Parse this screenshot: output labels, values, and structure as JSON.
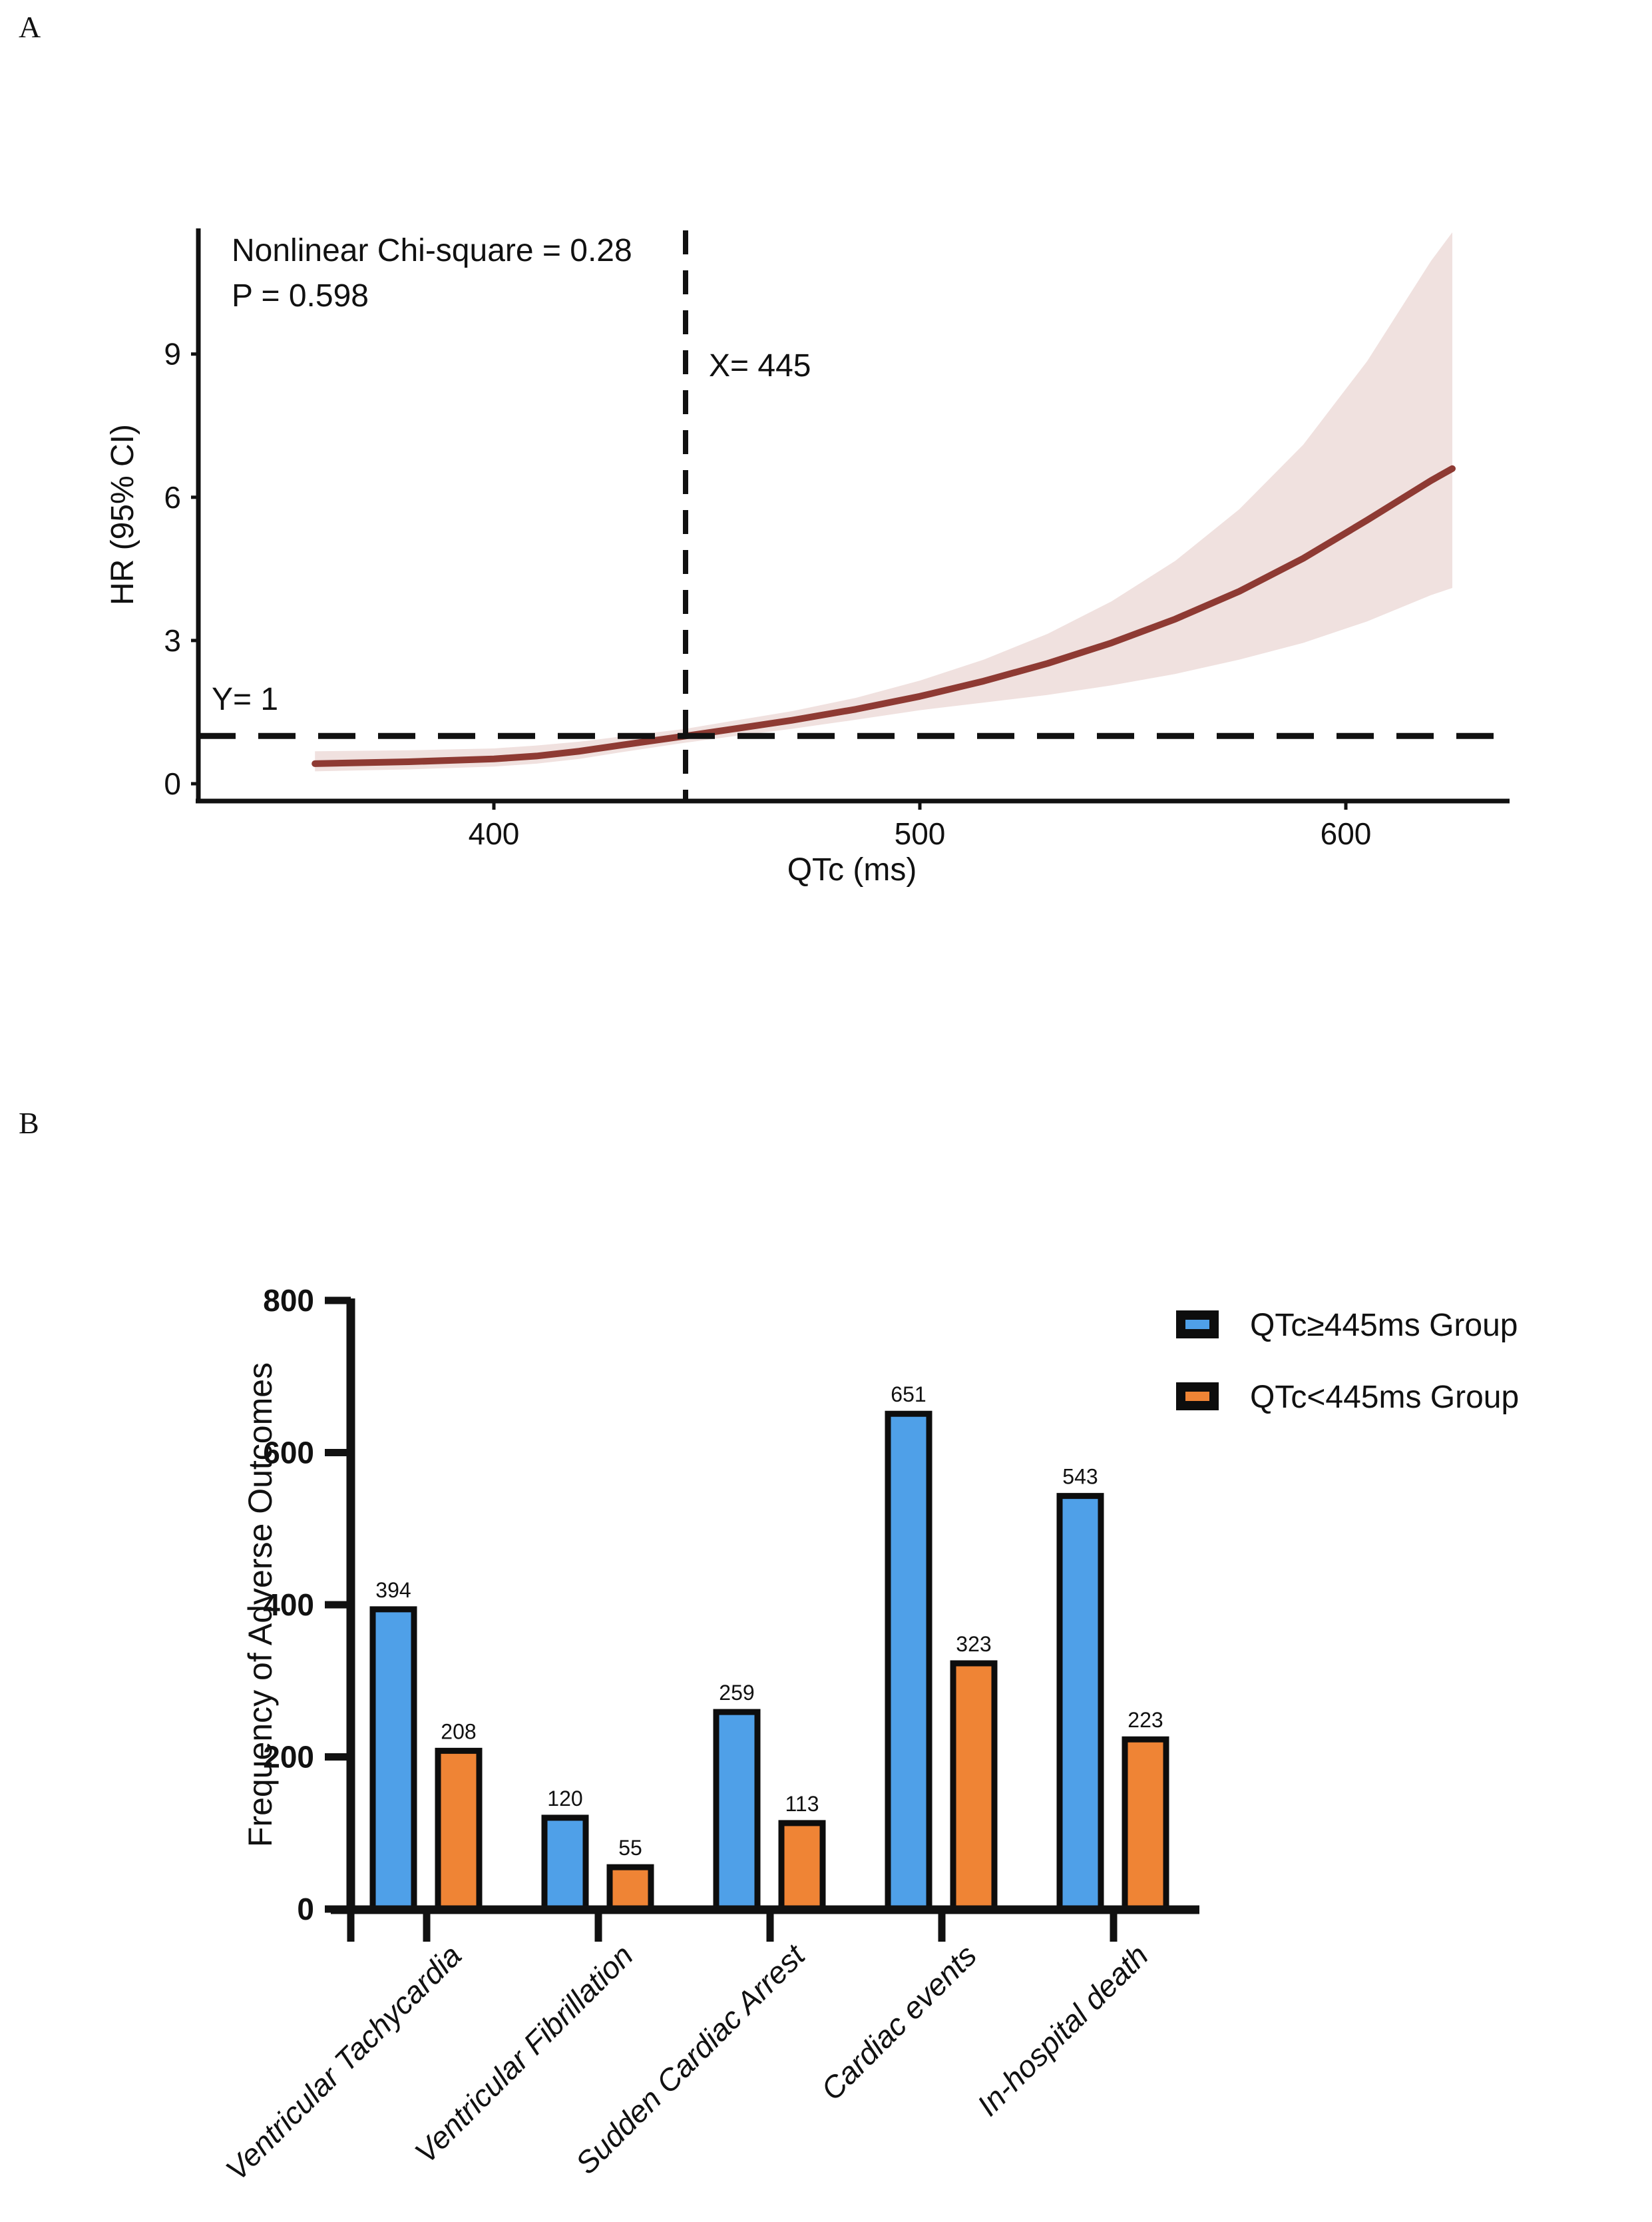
{
  "figure": {
    "panel_a_letter": "A",
    "panel_b_letter": "B"
  },
  "panel_a": {
    "annotation_line1": "Nonlinear Chi-square = 0.28",
    "annotation_line2": "P = 0.598",
    "ref_x_label": "X= 445",
    "ref_y_label": "Y= 1",
    "xlabel": "QTc (ms)",
    "ylabel": "HR (95% CI)"
  },
  "panel_b": {
    "ylabel": "Frequency of Adverse Outcomes"
  },
  "chart_data": [
    {
      "id": "panel_a_spline",
      "type": "line",
      "title": "",
      "xlabel": "QTc (ms)",
      "ylabel": "HR (95% CI)",
      "x_ticks": [
        400,
        500,
        600
      ],
      "y_ticks": [
        0,
        3,
        6,
        9
      ],
      "xlim": [
        358,
        625
      ],
      "ylim": [
        0,
        11.6
      ],
      "grid": false,
      "legend_position": "none",
      "ref_x": 445,
      "ref_y": 1,
      "annotations": [
        "Nonlinear Chi-square = 0.28",
        "P = 0.598",
        "X= 445",
        "Y= 1"
      ],
      "x": [
        358,
        380,
        400,
        410,
        420,
        430,
        445,
        455,
        470,
        485,
        500,
        515,
        530,
        545,
        560,
        575,
        590,
        605,
        620,
        625
      ],
      "series": [
        {
          "name": "HR",
          "values": [
            0.42,
            0.46,
            0.52,
            0.58,
            0.68,
            0.81,
            1.0,
            1.13,
            1.33,
            1.56,
            1.83,
            2.15,
            2.52,
            2.95,
            3.45,
            4.03,
            4.72,
            5.52,
            6.35,
            6.6
          ]
        },
        {
          "name": "CI upper",
          "values": [
            0.68,
            0.7,
            0.74,
            0.8,
            0.88,
            0.99,
            1.15,
            1.3,
            1.52,
            1.8,
            2.16,
            2.6,
            3.14,
            3.82,
            4.67,
            5.75,
            7.1,
            8.85,
            10.95,
            11.55
          ]
        },
        {
          "name": "CI lower",
          "values": [
            0.26,
            0.3,
            0.36,
            0.42,
            0.52,
            0.66,
            0.86,
            0.98,
            1.15,
            1.34,
            1.54,
            1.7,
            1.86,
            2.06,
            2.3,
            2.6,
            2.95,
            3.4,
            3.95,
            4.1
          ]
        }
      ],
      "colors": {
        "line": "#8E3A33",
        "band": "#F0E1DF"
      }
    },
    {
      "id": "panel_b_bars",
      "type": "bar",
      "title": "",
      "categories": [
        "Ventricular Tachycardia",
        "Ventricular Fibrillation",
        "Sudden Cardiac Arrest",
        "Cardiac events",
        "In-hospital death"
      ],
      "series": [
        {
          "name": "QTc≥445ms Group",
          "color": "#4FA0E8",
          "values": [
            394,
            120,
            259,
            651,
            543
          ]
        },
        {
          "name": "QTc<445ms Group",
          "color": "#EF8435",
          "values": [
            208,
            55,
            113,
            323,
            223
          ]
        }
      ],
      "ylabel": "Frequency of Adverse Outcomes",
      "y_ticks": [
        0,
        200,
        400,
        600,
        800
      ],
      "ylim": [
        0,
        800
      ],
      "grid": false,
      "legend_position": "top-right",
      "bar_outline": "#0d0d0d"
    }
  ]
}
